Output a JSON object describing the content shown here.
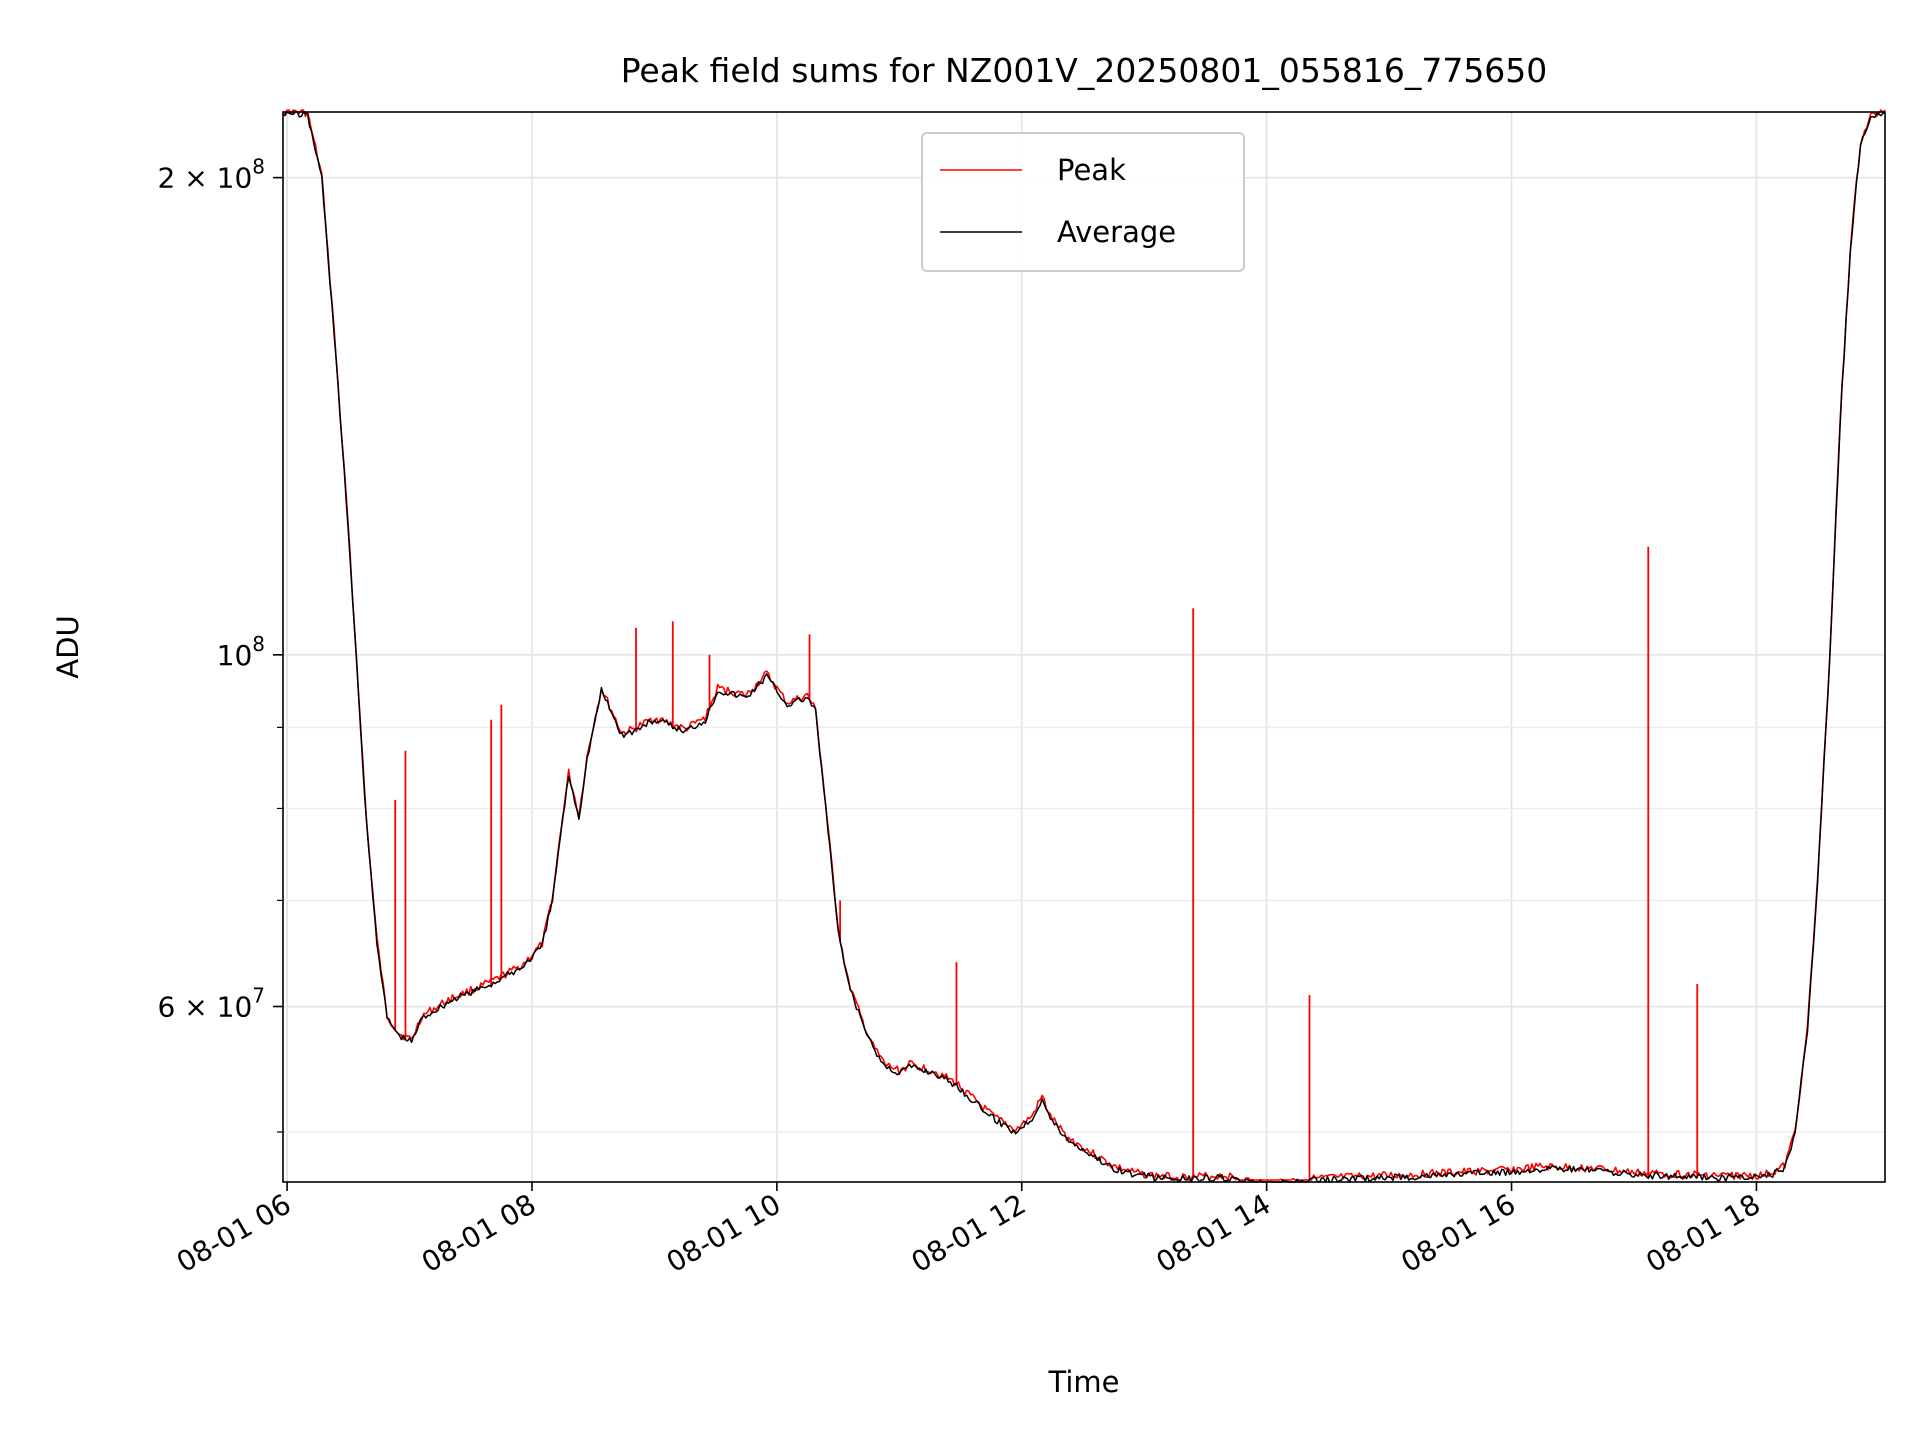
{
  "chart_data": {
    "type": "line",
    "title": "Peak field sums for NZ001V_20250801_055816_775650",
    "xlabel": "Time",
    "ylabel": "ADU",
    "xlim": [
      "2025-08-01 05:58",
      "2025-08-01 19:03"
    ],
    "ylim": [
      46500000,
      220000000
    ],
    "yscale": "log",
    "grid": true,
    "legend": "upper center",
    "x_ticks": [
      {
        "value": "2025-08-01 06:00",
        "label": "08-01 06"
      },
      {
        "value": "2025-08-01 08:00",
        "label": "08-01 08"
      },
      {
        "value": "2025-08-01 10:00",
        "label": "08-01 10"
      },
      {
        "value": "2025-08-01 12:00",
        "label": "08-01 12"
      },
      {
        "value": "2025-08-01 14:00",
        "label": "08-01 14"
      },
      {
        "value": "2025-08-01 16:00",
        "label": "08-01 16"
      },
      {
        "value": "2025-08-01 18:00",
        "label": "08-01 18"
      }
    ],
    "y_ticks": [
      {
        "value": 200000000,
        "base": "2 × 10",
        "exp": "8"
      },
      {
        "value": 100000000,
        "base": "10",
        "exp": "8"
      },
      {
        "value": 60000000,
        "base": "6 × 10",
        "exp": "7"
      }
    ],
    "y_minor_ticks": [
      50000000,
      70000000,
      80000000,
      90000000
    ],
    "series": [
      {
        "name": "Peak",
        "color": "#ff0000",
        "x": [
          "2025-08-01 06:53",
          "2025-08-01 06:58",
          "2025-08-01 07:40",
          "2025-08-01 07:45",
          "2025-08-01 08:51",
          "2025-08-01 09:09",
          "2025-08-01 09:27",
          "2025-08-01 10:16",
          "2025-08-01 10:31",
          "2025-08-01 11:28",
          "2025-08-01 13:24",
          "2025-08-01 14:21",
          "2025-08-01 17:07",
          "2025-08-01 17:31"
        ],
        "values": [
          81000000,
          87000000,
          91000000,
          93000000,
          104000000,
          105000000,
          100000000,
          103000000,
          70000000,
          64000000,
          107000000,
          61000000,
          117000000,
          62000000
        ]
      },
      {
        "name": "Average",
        "color": "#000000",
        "x": [
          "2025-08-01 05:58",
          "2025-08-01 06:10",
          "2025-08-01 06:17",
          "2025-08-01 06:23",
          "2025-08-01 06:30",
          "2025-08-01 06:36",
          "2025-08-01 06:39",
          "2025-08-01 06:44",
          "2025-08-01 06:49",
          "2025-08-01 06:55",
          "2025-08-01 07:01",
          "2025-08-01 07:06",
          "2025-08-01 07:20",
          "2025-08-01 07:40",
          "2025-08-01 07:55",
          "2025-08-01 08:05",
          "2025-08-01 08:10",
          "2025-08-01 08:14",
          "2025-08-01 08:18",
          "2025-08-01 08:23",
          "2025-08-01 08:27",
          "2025-08-01 08:34",
          "2025-08-01 08:44",
          "2025-08-01 08:50",
          "2025-08-01 09:00",
          "2025-08-01 09:15",
          "2025-08-01 09:25",
          "2025-08-01 09:31",
          "2025-08-01 09:45",
          "2025-08-01 09:55",
          "2025-08-01 10:05",
          "2025-08-01 10:15",
          "2025-08-01 10:19",
          "2025-08-01 10:24",
          "2025-08-01 10:30",
          "2025-08-01 10:35",
          "2025-08-01 10:41",
          "2025-08-01 10:47",
          "2025-08-01 10:53",
          "2025-08-01 11:00",
          "2025-08-01 11:05",
          "2025-08-01 11:17",
          "2025-08-01 11:28",
          "2025-08-01 11:35",
          "2025-08-01 11:46",
          "2025-08-01 11:57",
          "2025-08-01 12:05",
          "2025-08-01 12:10",
          "2025-08-01 12:14",
          "2025-08-01 12:22",
          "2025-08-01 12:33",
          "2025-08-01 12:44",
          "2025-08-01 12:55",
          "2025-08-01 13:05",
          "2025-08-01 13:20",
          "2025-08-01 13:40",
          "2025-08-01 13:52",
          "2025-08-01 14:02",
          "2025-08-01 14:24",
          "2025-08-01 15:00",
          "2025-08-01 15:30",
          "2025-08-01 16:00",
          "2025-08-01 16:15",
          "2025-08-01 16:40",
          "2025-08-01 17:00",
          "2025-08-01 17:20",
          "2025-08-01 17:45",
          "2025-08-01 18:02",
          "2025-08-01 18:08",
          "2025-08-01 18:14",
          "2025-08-01 18:19",
          "2025-08-01 18:25",
          "2025-08-01 18:30",
          "2025-08-01 18:36",
          "2025-08-01 18:41",
          "2025-08-01 18:46",
          "2025-08-01 18:51",
          "2025-08-01 18:56",
          "2025-08-01 19:03"
        ],
        "values": [
          220000000,
          219000000,
          200000000,
          160000000,
          120000000,
          90000000,
          78000000,
          66000000,
          59000000,
          57500000,
          57000000,
          59000000,
          60500000,
          62000000,
          63500000,
          65500000,
          70000000,
          77000000,
          84000000,
          79000000,
          86000000,
          95000000,
          89000000,
          89500000,
          91000000,
          89500000,
          91000000,
          95000000,
          94000000,
          97000000,
          93000000,
          94000000,
          92000000,
          80000000,
          67000000,
          62000000,
          59000000,
          56500000,
          55000000,
          54500000,
          55000000,
          54500000,
          53500000,
          52500000,
          51000000,
          50000000,
          51000000,
          52500000,
          51000000,
          49500000,
          48500000,
          47500000,
          47000000,
          46800000,
          46700000,
          46800000,
          46400000,
          46300000,
          46600000,
          46800000,
          47000000,
          47200000,
          47400000,
          47300000,
          47000000,
          46900000,
          46800000,
          46800000,
          47000000,
          47500000,
          50000000,
          58000000,
          72000000,
          100000000,
          140000000,
          180000000,
          210000000,
          218000000,
          220000000
        ]
      }
    ]
  }
}
